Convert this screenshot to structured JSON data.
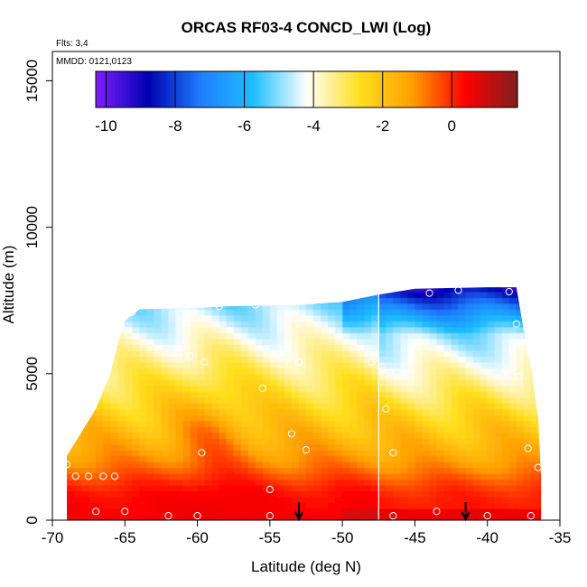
{
  "chart_data": {
    "type": "heatmap",
    "title": "ORCAS RF03-4 CONCD_LWI (Log)",
    "flights_note": "Flts: 3,4",
    "date_note": "MMDD: 0121,0123",
    "xlabel": "Latitude (deg N)",
    "ylabel": "Altitude (m)",
    "xlim": [
      -70,
      -35
    ],
    "ylim": [
      0,
      16000
    ],
    "x_ticks": [
      -70,
      -65,
      -60,
      -55,
      -50,
      -45,
      -40,
      -35
    ],
    "x_tick_labels": [
      "-70",
      "-65",
      "-60",
      "-55",
      "-50",
      "-45",
      "-40",
      "-35"
    ],
    "y_ticks": [
      0,
      5000,
      10000,
      15000
    ],
    "y_tick_labels": [
      "0",
      "5000",
      "10000",
      "15000"
    ],
    "colorbar": {
      "range": [
        -10.3,
        1.9
      ],
      "ticks": [
        -10,
        -8,
        -6,
        -4,
        -2,
        0
      ],
      "tick_labels": [
        "-10",
        "-8",
        "-6",
        "-4",
        "-2",
        "0"
      ],
      "colors": [
        "#7f1fff",
        "#0000b0",
        "#1f7fff",
        "#1fbfff",
        "#ffffff",
        "#ffdf1f",
        "#ff9f00",
        "#ff0000",
        "#7f1f1f"
      ]
    },
    "divider_latitude": -47.5,
    "arrow_latitudes": [
      -53,
      -41.5
    ],
    "coverage_top_altitude": [
      [
        -69.0,
        2200
      ],
      [
        -68.0,
        3000
      ],
      [
        -67.0,
        3800
      ],
      [
        -66.0,
        5000
      ],
      [
        -65.5,
        6000
      ],
      [
        -65.0,
        6800
      ],
      [
        -64.0,
        7200
      ],
      [
        -60.0,
        7250
      ],
      [
        -58.0,
        7300
      ],
      [
        -53.0,
        7350
      ],
      [
        -50.0,
        7450
      ],
      [
        -47.5,
        7700
      ],
      [
        -45.0,
        7900
      ],
      [
        -40.0,
        7950
      ],
      [
        -38.0,
        7950
      ],
      [
        -37.5,
        6500
      ],
      [
        -37.0,
        5200
      ],
      [
        -36.5,
        3500
      ],
      [
        -36.3,
        1500
      ]
    ],
    "sample_points": [
      [
        -64.5,
        7100
      ],
      [
        -58.5,
        7300
      ],
      [
        -56.0,
        7350
      ],
      [
        -60.5,
        5600
      ],
      [
        -59.5,
        5400
      ],
      [
        -55.5,
        4500
      ],
      [
        -53.0,
        5400
      ],
      [
        -53.5,
        2950
      ],
      [
        -52.5,
        2400
      ],
      [
        -59.7,
        2300
      ],
      [
        -69.0,
        1900
      ],
      [
        -68.4,
        1500
      ],
      [
        -67.5,
        1500
      ],
      [
        -66.5,
        1500
      ],
      [
        -65.7,
        1500
      ],
      [
        -55.0,
        1050
      ],
      [
        -67.0,
        300
      ],
      [
        -65.0,
        300
      ],
      [
        -62.0,
        150
      ],
      [
        -60.0,
        150
      ],
      [
        -55.0,
        150
      ],
      [
        -48.0,
        5400
      ],
      [
        -47.0,
        3800
      ],
      [
        -46.5,
        2300
      ],
      [
        -44.0,
        7750
      ],
      [
        -42.0,
        7850
      ],
      [
        -38.5,
        7800
      ],
      [
        -38.0,
        6700
      ],
      [
        -37.8,
        4900
      ],
      [
        -37.2,
        2450
      ],
      [
        -36.5,
        1800
      ],
      [
        -43.5,
        300
      ],
      [
        -40.0,
        150
      ],
      [
        -37.0,
        150
      ],
      [
        -46.5,
        150
      ]
    ]
  }
}
